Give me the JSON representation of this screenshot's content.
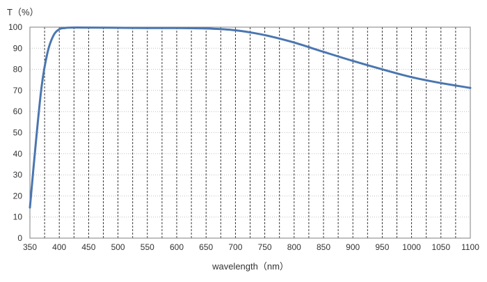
{
  "chart_data": {
    "type": "line",
    "title": "",
    "xlabel": "wavelength（nm）",
    "ylabel": "T（%）",
    "xlim": [
      350,
      1100
    ],
    "ylim": [
      0,
      100
    ],
    "x_ticks": [
      350,
      400,
      450,
      500,
      550,
      600,
      650,
      700,
      750,
      800,
      850,
      900,
      950,
      1000,
      1050,
      1100
    ],
    "y_ticks": [
      0,
      10,
      20,
      30,
      40,
      50,
      60,
      70,
      80,
      90,
      100
    ],
    "x_ticks_labels": [
      "350",
      "400",
      "450",
      "500",
      "550",
      "600",
      "650",
      "700",
      "750",
      "800",
      "850",
      "900",
      "950",
      "1000",
      "1050",
      "1100"
    ],
    "y_ticks_labels": [
      "0",
      "10",
      "20",
      "30",
      "40",
      "50",
      "60",
      "70",
      "80",
      "90",
      "100"
    ],
    "grid": {
      "vertical_minor_dashed": true,
      "horizontal_dotted": true
    },
    "line_color": "#4a76b0",
    "series": [
      {
        "name": "",
        "x": [
          350,
          360,
          370,
          380,
          390,
          400,
          410,
          420,
          450,
          500,
          550,
          600,
          650,
          680,
          700,
          730,
          760,
          800,
          850,
          900,
          950,
          1000,
          1050,
          1100
        ],
        "y": [
          14.5,
          45.0,
          72.0,
          88.0,
          96.0,
          99.0,
          99.6,
          99.8,
          99.8,
          99.7,
          99.6,
          99.6,
          99.4,
          99.0,
          98.5,
          97.3,
          95.6,
          92.7,
          88.3,
          84.0,
          80.0,
          76.3,
          73.5,
          71.2
        ]
      }
    ]
  }
}
